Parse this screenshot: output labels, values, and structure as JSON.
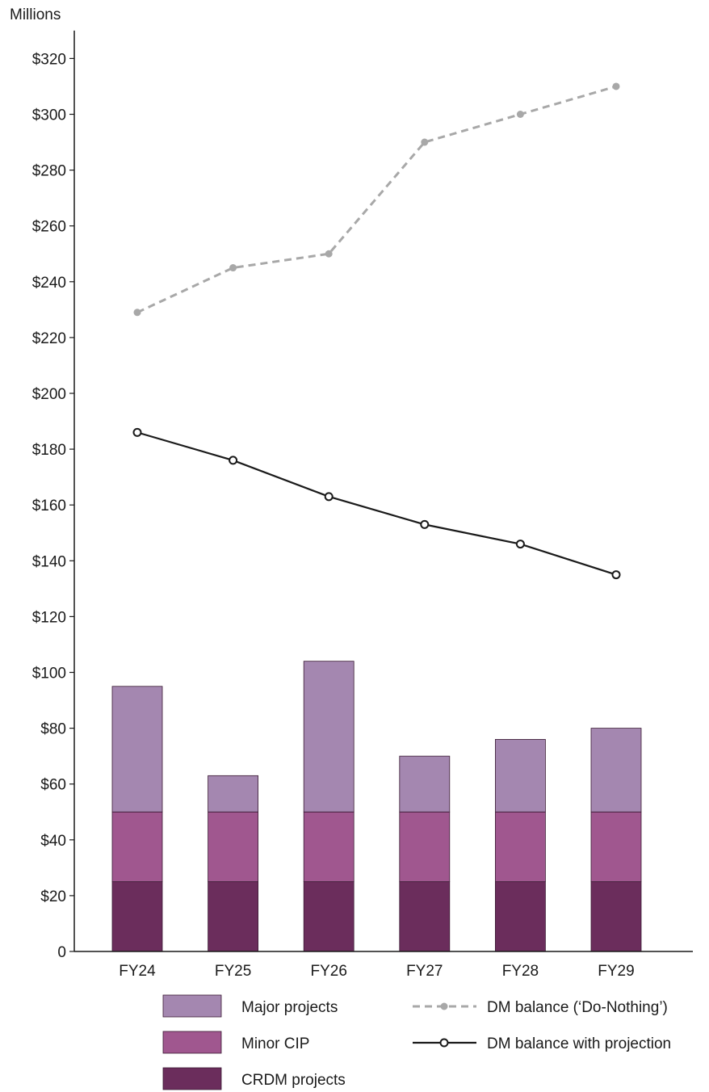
{
  "chart_data": {
    "type": "bar",
    "unit_label": "Millions",
    "categories": [
      "FY24",
      "FY25",
      "FY26",
      "FY27",
      "FY28",
      "FY29"
    ],
    "ylim": [
      0,
      330
    ],
    "yticks": [
      {
        "value": 0,
        "label": "0"
      },
      {
        "value": 20,
        "label": "$20"
      },
      {
        "value": 40,
        "label": "$40"
      },
      {
        "value": 60,
        "label": "$60"
      },
      {
        "value": 80,
        "label": "$80"
      },
      {
        "value": 100,
        "label": "$100"
      },
      {
        "value": 120,
        "label": "$120"
      },
      {
        "value": 140,
        "label": "$140"
      },
      {
        "value": 160,
        "label": "$160"
      },
      {
        "value": 180,
        "label": "$180"
      },
      {
        "value": 200,
        "label": "$200"
      },
      {
        "value": 220,
        "label": "$220"
      },
      {
        "value": 240,
        "label": "$240"
      },
      {
        "value": 260,
        "label": "$260"
      },
      {
        "value": 280,
        "label": "$280"
      },
      {
        "value": 300,
        "label": "$300"
      },
      {
        "value": 320,
        "label": "$320"
      }
    ],
    "grid": false,
    "stacked_series": [
      {
        "name": "CRDM projects",
        "color": "#6b2d5c",
        "values": [
          25,
          25,
          25,
          25,
          25,
          25
        ]
      },
      {
        "name": "Minor CIP",
        "color": "#a0578f",
        "values": [
          25,
          25,
          25,
          25,
          25,
          25
        ]
      },
      {
        "name": "Major projects",
        "color": "#a487b0",
        "values": [
          45,
          13,
          54,
          20,
          26,
          30
        ]
      }
    ],
    "line_series": [
      {
        "name": "DM balance (‘Do-Nothing’)",
        "color": "#a8a8a8",
        "style": "dashed",
        "marker": "filled-dot",
        "values": [
          229,
          245,
          250,
          290,
          300,
          310
        ]
      },
      {
        "name": "DM balance with projection",
        "color": "#1a1a1a",
        "style": "solid",
        "marker": "open-circle",
        "values": [
          186,
          176,
          163,
          153,
          146,
          135
        ]
      }
    ],
    "legend_placement": "bottom"
  }
}
